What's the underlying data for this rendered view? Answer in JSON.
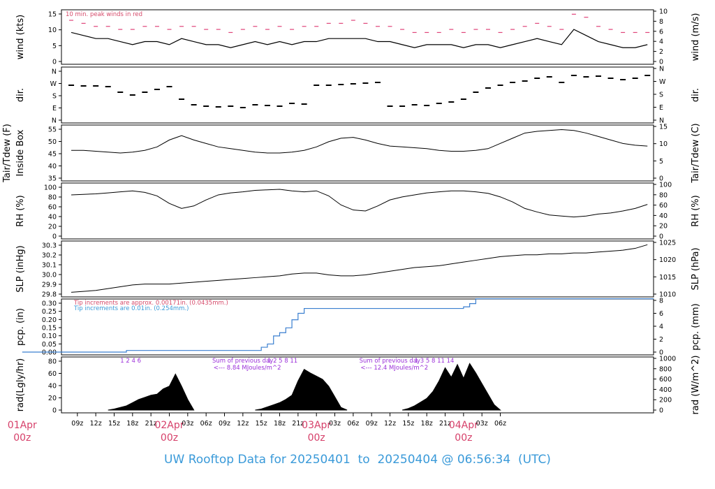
{
  "footer": "UW Rooftop Data for 20250401  to  20250404 @ 06:56:34  (UTC)",
  "colors": {
    "trace": "#000000",
    "peak": "#e0447a",
    "precip": "#3a7fd0",
    "annot_red": "#d64a6a",
    "annot_blue": "#3a9ad9",
    "annot_purple": "#9b30d9",
    "date_label": "#d6406a"
  },
  "x_axis": {
    "hour_labels": [
      "09z",
      "12z",
      "15z",
      "18z",
      "21z",
      "02Apr",
      "03z",
      "06z",
      "09z",
      "12z",
      "15z",
      "18z",
      "21z",
      "03Apr",
      "03z",
      "06z",
      "09z",
      "12z",
      "15z",
      "18z",
      "21z",
      "04Apr",
      "03z",
      "06z"
    ],
    "day_labels": [
      {
        "date": "01Apr",
        "hour": "00z"
      },
      {
        "date": "02Apr",
        "hour": "00z"
      },
      {
        "date": "03Apr",
        "hour": "00z"
      },
      {
        "date": "04Apr",
        "hour": "00z"
      }
    ]
  },
  "panels": {
    "wind": {
      "left_label": "wind (kts)",
      "right_label": "wind (m/s)",
      "left_ticks": [
        "0",
        "5",
        "10",
        "15"
      ],
      "right_ticks": [
        "0",
        "2",
        "4",
        "6",
        "8",
        "10"
      ],
      "note": "10 min. peak winds in red"
    },
    "dir": {
      "left_label": "dir.",
      "right_label": "dir.",
      "left_ticks": [
        "N",
        "E",
        "S",
        "W",
        "N"
      ],
      "right_ticks": [
        "N",
        "E",
        "S",
        "W",
        "N"
      ]
    },
    "temp": {
      "left_label_1": "Tair/Tdew (F)",
      "left_label_2": "Inside Box",
      "right_label": "Tair/Tdew (C)",
      "left_ticks": [
        "35",
        "40",
        "45",
        "50",
        "55"
      ],
      "right_ticks": [
        "0",
        "5",
        "10",
        "15"
      ]
    },
    "rh": {
      "left_label": "RH (%)",
      "right_label": "RH (%)",
      "left_ticks": [
        "0",
        "20",
        "40",
        "60",
        "80",
        "100"
      ],
      "right_ticks": [
        "0",
        "20",
        "40",
        "60",
        "80",
        "100"
      ]
    },
    "slp": {
      "left_label": "SLP (inHg)",
      "right_label": "SLP (hPa)",
      "left_ticks": [
        "29.8",
        "29.9",
        "30.0",
        "30.1",
        "30.2",
        "30.3"
      ],
      "right_ticks": [
        "1010",
        "1015",
        "1020",
        "1025"
      ]
    },
    "pcp": {
      "left_label": "pcp. (in)",
      "right_label": "pcp. (mm)",
      "left_ticks": [
        "0.00",
        "0.05",
        "0.10",
        "0.15",
        "0.20",
        "0.25",
        "0.30"
      ],
      "right_ticks": [
        "0",
        "2",
        "4",
        "6",
        "8"
      ],
      "note_red": "Tip increments are approx. 0.00171in. (0.0435mm.)",
      "note_blue": "Tip increments are 0.01in. (0.254mm.)"
    },
    "rad": {
      "left_label": "rad(Lgly/hr)",
      "right_label": "rad (W/m^2)",
      "left_ticks": [
        "0",
        "20",
        "40",
        "60",
        "80"
      ],
      "right_ticks": [
        "0",
        "200",
        "400",
        "600",
        "800",
        "1000"
      ],
      "sum_1_line1": "Sum of previous day",
      "sum_1_line2": "<--- 8.84 MJoules/m^2",
      "sum_2_line1": "Sum of previous day",
      "sum_2_line2": "<--- 12.4 MJoules/m^2",
      "hour_marks_day1": "1   2    4  6",
      "hour_marks_day2": "1    2  5  8    11",
      "hour_marks_day3": "1    3     5    8    11     14"
    }
  },
  "chart_data": [
    {
      "type": "line",
      "name": "wind",
      "ylabel": "wind (kts)",
      "ylim": [
        0,
        17
      ],
      "x_hours": [
        8,
        10,
        12,
        14,
        16,
        18,
        20,
        22,
        24,
        26,
        28,
        30,
        32,
        34,
        36,
        38,
        40,
        42,
        44,
        46,
        48,
        50,
        52,
        54,
        56,
        58,
        60,
        62,
        64,
        66,
        68,
        70,
        72,
        74,
        76,
        78,
        80,
        82,
        84,
        86,
        88,
        90,
        92,
        94,
        96,
        98,
        100,
        102
      ],
      "series": [
        {
          "values": [
            10,
            9,
            8,
            8,
            7,
            6,
            7,
            7,
            6,
            8,
            7,
            6,
            6,
            5,
            6,
            7,
            6,
            7,
            6,
            7,
            7,
            8,
            8,
            8,
            8,
            7,
            7,
            6,
            5,
            6,
            6,
            6,
            5,
            6,
            6,
            5,
            6,
            7,
            8,
            7,
            6,
            11,
            9,
            7,
            6,
            5,
            5,
            6
          ]
        },
        {
          "values": [
            14,
            13,
            12,
            12,
            11,
            11,
            12,
            12,
            11,
            12,
            12,
            11,
            11,
            10,
            11,
            12,
            11,
            12,
            11,
            12,
            12,
            13,
            13,
            14,
            13,
            12,
            12,
            11,
            10,
            10,
            10,
            11,
            10,
            11,
            11,
            10,
            11,
            12,
            13,
            12,
            11,
            16,
            15,
            12,
            11,
            10,
            10,
            10
          ]
        }
      ]
    },
    {
      "type": "scatter",
      "name": "wind direction",
      "ylabel": "dir.",
      "y_categories": [
        "N",
        "E",
        "S",
        "W",
        "N"
      ],
      "x_hours": [
        8,
        10,
        12,
        14,
        16,
        18,
        20,
        22,
        24,
        26,
        28,
        30,
        32,
        34,
        36,
        38,
        40,
        42,
        44,
        46,
        48,
        50,
        52,
        54,
        56,
        58,
        60,
        62,
        64,
        66,
        68,
        70,
        72,
        74,
        76,
        78,
        80,
        82,
        84,
        86,
        88,
        90,
        92,
        94,
        96,
        98,
        100,
        102
      ],
      "values_deg": [
        250,
        245,
        245,
        240,
        200,
        180,
        200,
        220,
        240,
        150,
        110,
        100,
        95,
        100,
        90,
        110,
        105,
        100,
        120,
        115,
        250,
        250,
        255,
        260,
        265,
        270,
        100,
        100,
        110,
        105,
        120,
        130,
        150,
        200,
        230,
        250,
        270,
        280,
        300,
        310,
        270,
        320,
        310,
        315,
        300,
        290,
        300,
        320
      ]
    },
    {
      "type": "line",
      "name": "Tair",
      "ylabel": "Tair/Tdew (F)",
      "ylim": [
        30,
        59
      ],
      "x_hours": [
        8,
        10,
        12,
        14,
        16,
        18,
        20,
        22,
        24,
        26,
        28,
        30,
        32,
        34,
        36,
        38,
        40,
        42,
        44,
        46,
        48,
        50,
        52,
        54,
        56,
        58,
        60,
        62,
        64,
        66,
        68,
        70,
        72,
        74,
        76,
        78,
        80,
        82,
        84,
        86,
        88,
        90,
        92,
        94,
        96,
        98,
        100,
        102
      ],
      "values": [
        46,
        46,
        45.5,
        45,
        44.5,
        45,
        46,
        48,
        52,
        54.5,
        52,
        50,
        48,
        47,
        46,
        45,
        44.5,
        44.5,
        45,
        46,
        48,
        51,
        53,
        53.5,
        52,
        50,
        48.5,
        48,
        47.5,
        47,
        46,
        45.5,
        45.5,
        46,
        47,
        50,
        53,
        56,
        57,
        57.5,
        58,
        57.5,
        56,
        54,
        52,
        50,
        49,
        48.5
      ]
    },
    {
      "type": "line",
      "name": "RH",
      "ylabel": "RH (%)",
      "ylim": [
        0,
        100
      ],
      "x_hours": [
        8,
        10,
        12,
        14,
        16,
        18,
        20,
        22,
        24,
        26,
        28,
        30,
        32,
        34,
        36,
        38,
        40,
        42,
        44,
        46,
        48,
        50,
        52,
        54,
        56,
        58,
        60,
        62,
        64,
        66,
        68,
        70,
        72,
        74,
        76,
        78,
        80,
        82,
        84,
        86,
        88,
        90,
        92,
        94,
        96,
        98,
        100,
        102
      ],
      "values": [
        82,
        83,
        84,
        86,
        88,
        90,
        87,
        80,
        65,
        55,
        60,
        72,
        82,
        86,
        88,
        91,
        92,
        93,
        90,
        88,
        90,
        80,
        62,
        52,
        50,
        60,
        72,
        78,
        82,
        86,
        88,
        90,
        90,
        88,
        85,
        78,
        68,
        55,
        48,
        42,
        40,
        38,
        40,
        44,
        46,
        50,
        55,
        63
      ]
    },
    {
      "type": "line",
      "name": "SLP",
      "ylabel": "SLP (inHg)",
      "ylim": [
        29.8,
        30.35
      ],
      "x_hours": [
        8,
        10,
        12,
        14,
        16,
        18,
        20,
        22,
        24,
        26,
        28,
        30,
        32,
        34,
        36,
        38,
        40,
        42,
        44,
        46,
        48,
        50,
        52,
        54,
        56,
        58,
        60,
        62,
        64,
        66,
        68,
        70,
        72,
        74,
        76,
        78,
        80,
        82,
        84,
        86,
        88,
        90,
        92,
        94,
        96,
        98,
        100,
        102
      ],
      "values": [
        29.82,
        29.83,
        29.84,
        29.86,
        29.88,
        29.9,
        29.91,
        29.91,
        29.91,
        29.92,
        29.93,
        29.94,
        29.95,
        29.96,
        29.97,
        29.98,
        29.99,
        30.0,
        30.02,
        30.03,
        30.03,
        30.01,
        30.0,
        30.0,
        30.01,
        30.03,
        30.05,
        30.07,
        30.09,
        30.1,
        30.11,
        30.13,
        30.15,
        30.17,
        30.19,
        30.21,
        30.22,
        30.23,
        30.23,
        30.24,
        30.24,
        30.25,
        30.25,
        30.26,
        30.27,
        30.28,
        30.3,
        30.34
      ]
    },
    {
      "type": "line",
      "name": "precipitation",
      "ylabel": "pcp. (in)",
      "ylim": [
        0,
        0.32
      ],
      "x_hours": [
        0,
        16,
        17,
        38,
        39,
        40,
        41,
        42,
        43,
        44,
        45,
        46,
        47,
        48,
        49,
        50,
        51,
        52,
        53,
        54,
        55,
        56,
        57,
        58,
        59,
        60,
        61,
        62,
        63,
        64,
        65,
        66,
        67,
        68,
        69,
        70,
        71,
        72,
        73,
        74,
        75,
        76,
        77,
        78,
        79,
        80,
        81,
        82,
        83,
        84,
        85,
        86,
        87,
        88,
        89,
        90,
        91,
        92,
        93,
        94,
        95,
        96,
        97,
        98,
        99,
        100,
        101,
        102,
        103
      ],
      "values": [
        0,
        0,
        0.01,
        0.01,
        0.03,
        0.05,
        0.1,
        0.12,
        0.15,
        0.2,
        0.24,
        0.27,
        0.27,
        0.27,
        0.27,
        0.27,
        0.27,
        0.27,
        0.27,
        0.27,
        0.27,
        0.27,
        0.27,
        0.27,
        0.27,
        0.27,
        0.27,
        0.27,
        0.27,
        0.27,
        0.27,
        0.27,
        0.27,
        0.27,
        0.27,
        0.27,
        0.27,
        0.28,
        0.3,
        0.33,
        0.33,
        0.33,
        0.33,
        0.33,
        0.33,
        0.33,
        0.33,
        0.33,
        0.33,
        0.33,
        0.33,
        0.33,
        0.33,
        0.33,
        0.33,
        0.33,
        0.33,
        0.33,
        0.33,
        0.33,
        0.33,
        0.33,
        0.33,
        0.33,
        0.33,
        0.33,
        0.33,
        0.33,
        0.33
      ]
    },
    {
      "type": "area",
      "name": "radiation",
      "ylabel": "rad(Lgly/hr)",
      "ylim": [
        0,
        95
      ],
      "x_hours": [
        14,
        15,
        16,
        17,
        18,
        19,
        20,
        21,
        22,
        23,
        24,
        25,
        26,
        27,
        28,
        38,
        39,
        40,
        41,
        42,
        43,
        44,
        45,
        46,
        47,
        48,
        49,
        50,
        51,
        52,
        53,
        62,
        63,
        64,
        65,
        66,
        67,
        68,
        69,
        70,
        71,
        72,
        73,
        74,
        75,
        76,
        77,
        78
      ],
      "values": [
        0,
        2,
        5,
        8,
        14,
        20,
        24,
        28,
        30,
        40,
        45,
        68,
        45,
        20,
        0,
        0,
        2,
        6,
        10,
        14,
        20,
        28,
        55,
        77,
        70,
        64,
        58,
        45,
        25,
        5,
        0,
        0,
        3,
        8,
        15,
        22,
        35,
        55,
        80,
        62,
        86,
        60,
        88,
        70,
        50,
        30,
        10,
        0
      ]
    }
  ]
}
